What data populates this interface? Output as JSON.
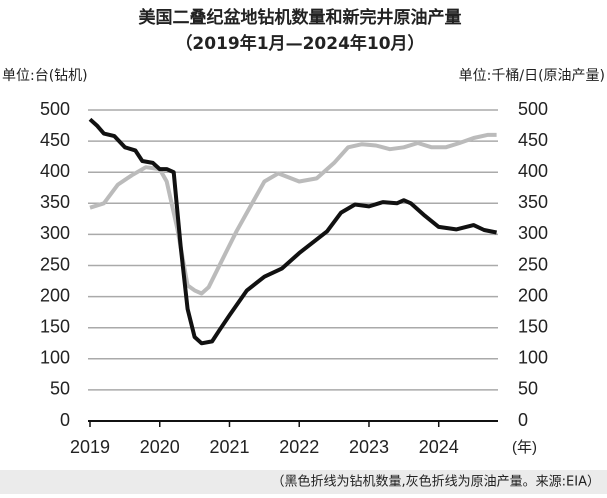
{
  "chart_data": {
    "type": "line",
    "title": "美国二叠纪盆地钻机数量和新完井原油产量",
    "subtitle": "（2019年1月—2024年10月）",
    "ylabel": "单位:台(钻机)",
    "y2label": "单位:千桶/日(原油产量)",
    "xlabel": "(年)",
    "note": "（黑色折线为钻机数量,灰色折线为原油产量。来源:EIA）",
    "xlim": [
      2019,
      2024.85
    ],
    "xticks": [
      2019,
      2020,
      2021,
      2022,
      2023,
      2024
    ],
    "ylim": [
      0,
      500
    ],
    "yticks": [
      0,
      50,
      100,
      150,
      200,
      250,
      300,
      350,
      400,
      450,
      500
    ],
    "y2lim": [
      0,
      500
    ],
    "y2ticks": [
      0,
      50,
      100,
      150,
      200,
      250,
      300,
      350,
      400,
      450,
      500
    ],
    "grid": true,
    "series": [
      {
        "color": "#111111",
        "x": [
          2019.0,
          2019.1,
          2019.2,
          2019.35,
          2019.5,
          2019.65,
          2019.75,
          2019.9,
          2020.0,
          2020.1,
          2020.2,
          2020.3,
          2020.4,
          2020.5,
          2020.6,
          2020.75,
          2020.85,
          2021.0,
          2021.25,
          2021.5,
          2021.75,
          2022.0,
          2022.25,
          2022.4,
          2022.6,
          2022.8,
          2023.0,
          2023.2,
          2023.4,
          2023.5,
          2023.6,
          2023.8,
          2024.0,
          2024.25,
          2024.5,
          2024.65,
          2024.83
        ],
        "values": [
          485,
          475,
          462,
          458,
          440,
          435,
          418,
          415,
          405,
          405,
          400,
          280,
          180,
          135,
          125,
          128,
          145,
          170,
          210,
          232,
          245,
          270,
          292,
          305,
          335,
          348,
          345,
          352,
          350,
          355,
          350,
          330,
          312,
          308,
          315,
          307,
          303
        ]
      },
      {
        "color": "#bbbbbb",
        "axis": "y2",
        "x": [
          2019.0,
          2019.2,
          2019.4,
          2019.6,
          2019.8,
          2020.0,
          2020.1,
          2020.25,
          2020.4,
          2020.5,
          2020.6,
          2020.7,
          2020.9,
          2021.1,
          2021.3,
          2021.5,
          2021.7,
          2022.0,
          2022.25,
          2022.5,
          2022.7,
          2022.9,
          2023.1,
          2023.3,
          2023.5,
          2023.7,
          2023.9,
          2024.1,
          2024.3,
          2024.5,
          2024.7,
          2024.83
        ],
        "values": [
          343,
          350,
          380,
          395,
          408,
          405,
          385,
          310,
          218,
          210,
          205,
          215,
          260,
          305,
          345,
          385,
          398,
          385,
          390,
          415,
          440,
          445,
          443,
          437,
          440,
          447,
          440,
          440,
          447,
          455,
          460,
          460
        ]
      }
    ]
  }
}
